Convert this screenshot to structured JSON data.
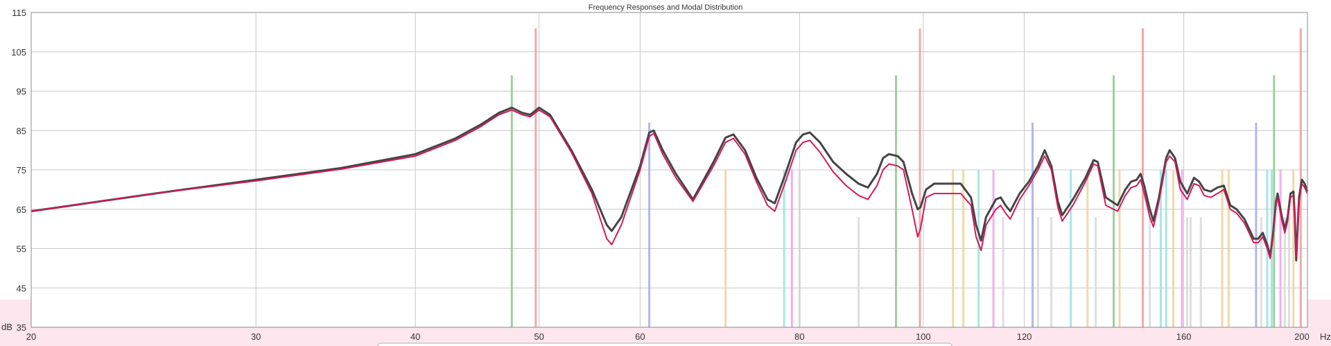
{
  "chart_data": {
    "type": "line",
    "title": "Frequency Responses and Modal Distribution",
    "x_scale": "log",
    "xlim": [
      20,
      200
    ],
    "ylim": [
      35,
      115
    ],
    "x_unit": "Hz",
    "y_unit": "dB",
    "x_ticks": [
      20,
      30,
      40,
      50,
      60,
      80,
      100,
      120,
      160,
      200
    ],
    "x_tick_labels": [
      "20",
      "30",
      "40",
      "50",
      "60",
      "80",
      "100",
      "120",
      "160",
      "200"
    ],
    "y_ticks": [
      35,
      45,
      55,
      65,
      75,
      85,
      95,
      105,
      115
    ],
    "y_tick_labels": [
      "35",
      "45",
      "55",
      "65",
      "75",
      "85",
      "95",
      "105",
      "115"
    ],
    "grid": true,
    "series": [
      {
        "color": "#444444",
        "points": [
          [
            20,
            64.5
          ],
          [
            25,
            69
          ],
          [
            30,
            72.5
          ],
          [
            35,
            75.5
          ],
          [
            40,
            79
          ],
          [
            43,
            83
          ],
          [
            45,
            86.5
          ],
          [
            46.5,
            89.5
          ],
          [
            47.6,
            90.8
          ],
          [
            48.5,
            89.5
          ],
          [
            49.2,
            89
          ],
          [
            50,
            90.8
          ],
          [
            51,
            89
          ],
          [
            53,
            80
          ],
          [
            55,
            70
          ],
          [
            56.5,
            61
          ],
          [
            57,
            59.5
          ],
          [
            58,
            63
          ],
          [
            60,
            76
          ],
          [
            61,
            84.5
          ],
          [
            61.5,
            85
          ],
          [
            62.5,
            80
          ],
          [
            64,
            74
          ],
          [
            66,
            67.5
          ],
          [
            68.5,
            77
          ],
          [
            70,
            83.2
          ],
          [
            71,
            84
          ],
          [
            72.5,
            80
          ],
          [
            74,
            73
          ],
          [
            75.5,
            67.5
          ],
          [
            76.5,
            66.5
          ],
          [
            78,
            74
          ],
          [
            79.5,
            82
          ],
          [
            80.5,
            84
          ],
          [
            81.5,
            84.5
          ],
          [
            83,
            82
          ],
          [
            85,
            77
          ],
          [
            87,
            74
          ],
          [
            89,
            71.5
          ],
          [
            90.5,
            70.5
          ],
          [
            92,
            74
          ],
          [
            93,
            78
          ],
          [
            94,
            79
          ],
          [
            95.5,
            78.5
          ],
          [
            96.5,
            77
          ],
          [
            98,
            69
          ],
          [
            99,
            65
          ],
          [
            99.5,
            65.5
          ],
          [
            100.5,
            70
          ],
          [
            102,
            71.5
          ],
          [
            104,
            71.5
          ],
          [
            107,
            71.5
          ],
          [
            109,
            68
          ],
          [
            110,
            61
          ],
          [
            111,
            57
          ],
          [
            112,
            63
          ],
          [
            114,
            67.5
          ],
          [
            115,
            68
          ],
          [
            116,
            66
          ],
          [
            117,
            64.5
          ],
          [
            119,
            69
          ],
          [
            121,
            72
          ],
          [
            123,
            76
          ],
          [
            124.5,
            80
          ],
          [
            126,
            76
          ],
          [
            127.5,
            67
          ],
          [
            128.5,
            63.5
          ],
          [
            131,
            67.5
          ],
          [
            134,
            73
          ],
          [
            136,
            77.5
          ],
          [
            137,
            77
          ],
          [
            139,
            68
          ],
          [
            142,
            66
          ],
          [
            144,
            70
          ],
          [
            145.5,
            72
          ],
          [
            147,
            72.5
          ],
          [
            148,
            74
          ],
          [
            149,
            71
          ],
          [
            150.5,
            65
          ],
          [
            151.5,
            62
          ],
          [
            153,
            68
          ],
          [
            155,
            78
          ],
          [
            156,
            80
          ],
          [
            157.5,
            78
          ],
          [
            159,
            72
          ],
          [
            161,
            69
          ],
          [
            163,
            73
          ],
          [
            164.5,
            72
          ],
          [
            166,
            70
          ],
          [
            168,
            69.5
          ],
          [
            170,
            70.5
          ],
          [
            172,
            71
          ],
          [
            174,
            66
          ],
          [
            176,
            65
          ],
          [
            177,
            64
          ],
          [
            178.5,
            62.5
          ],
          [
            180,
            60
          ],
          [
            181.5,
            57.5
          ],
          [
            183,
            57.5
          ],
          [
            184.5,
            59
          ],
          [
            186,
            56
          ],
          [
            187,
            53
          ],
          [
            188,
            59
          ],
          [
            189,
            67
          ],
          [
            189.5,
            69
          ],
          [
            191,
            63
          ],
          [
            192,
            60
          ],
          [
            193,
            63
          ],
          [
            194,
            69
          ],
          [
            195,
            69.5
          ],
          [
            195.5,
            63
          ],
          [
            196,
            52
          ],
          [
            196.5,
            60
          ],
          [
            197,
            68
          ],
          [
            198,
            72.5
          ],
          [
            199,
            71.5
          ],
          [
            200,
            69.5
          ]
        ]
      },
      {
        "color": "#d1195a",
        "points": [
          [
            20,
            64.5
          ],
          [
            25,
            69
          ],
          [
            30,
            72.2
          ],
          [
            35,
            75.2
          ],
          [
            40,
            78.5
          ],
          [
            43,
            82.5
          ],
          [
            45,
            86
          ],
          [
            46.5,
            89
          ],
          [
            47.6,
            90.2
          ],
          [
            48.5,
            89
          ],
          [
            49.2,
            88.5
          ],
          [
            50,
            90.2
          ],
          [
            51,
            88.5
          ],
          [
            53,
            79.5
          ],
          [
            55,
            69
          ],
          [
            56.5,
            57.5
          ],
          [
            57,
            56
          ],
          [
            58,
            61
          ],
          [
            60,
            75
          ],
          [
            61,
            83.5
          ],
          [
            61.5,
            84.3
          ],
          [
            62.5,
            79
          ],
          [
            64,
            73
          ],
          [
            66,
            67
          ],
          [
            68.5,
            76
          ],
          [
            70,
            82
          ],
          [
            71,
            83
          ],
          [
            72.5,
            79
          ],
          [
            74,
            72
          ],
          [
            75.5,
            66
          ],
          [
            76.5,
            64.5
          ],
          [
            78,
            72
          ],
          [
            79.5,
            80
          ],
          [
            80.5,
            82
          ],
          [
            81.5,
            82.5
          ],
          [
            83,
            79.5
          ],
          [
            85,
            74.5
          ],
          [
            87,
            71
          ],
          [
            89,
            68.5
          ],
          [
            90.5,
            67.5
          ],
          [
            92,
            71
          ],
          [
            93,
            75
          ],
          [
            94,
            76.5
          ],
          [
            95.5,
            76
          ],
          [
            96.5,
            75
          ],
          [
            98,
            65
          ],
          [
            99,
            58
          ],
          [
            99.5,
            60
          ],
          [
            100.5,
            68
          ],
          [
            102,
            69
          ],
          [
            104,
            69
          ],
          [
            107,
            69
          ],
          [
            109,
            66
          ],
          [
            110,
            58
          ],
          [
            111,
            54.5
          ],
          [
            112,
            61
          ],
          [
            114,
            65
          ],
          [
            115,
            66
          ],
          [
            116,
            64
          ],
          [
            117,
            62.5
          ],
          [
            119,
            67.5
          ],
          [
            121,
            71
          ],
          [
            123,
            75
          ],
          [
            124.5,
            78.5
          ],
          [
            126,
            75
          ],
          [
            127.5,
            65.5
          ],
          [
            128.5,
            62
          ],
          [
            131,
            66
          ],
          [
            134,
            72
          ],
          [
            136,
            76.5
          ],
          [
            137,
            76
          ],
          [
            139,
            66
          ],
          [
            142,
            64.5
          ],
          [
            144,
            68.5
          ],
          [
            145.5,
            70.5
          ],
          [
            147,
            71
          ],
          [
            148,
            72.5
          ],
          [
            149,
            69
          ],
          [
            150.5,
            63
          ],
          [
            151.5,
            60.5
          ],
          [
            153,
            67
          ],
          [
            155,
            77
          ],
          [
            156,
            78.5
          ],
          [
            157.5,
            77
          ],
          [
            159,
            70
          ],
          [
            161,
            67.5
          ],
          [
            163,
            71.5
          ],
          [
            164.5,
            71
          ],
          [
            166,
            68.5
          ],
          [
            168,
            68
          ],
          [
            170,
            69
          ],
          [
            172,
            70
          ],
          [
            174,
            65
          ],
          [
            176,
            64
          ],
          [
            177,
            63
          ],
          [
            178.5,
            61.5
          ],
          [
            180,
            59
          ],
          [
            181.5,
            56.5
          ],
          [
            183,
            56.5
          ],
          [
            184.5,
            58
          ],
          [
            186,
            55
          ],
          [
            187,
            52.5
          ],
          [
            188,
            58
          ],
          [
            189,
            66
          ],
          [
            189.5,
            68
          ],
          [
            191,
            62
          ],
          [
            192,
            59
          ],
          [
            193,
            62
          ],
          [
            194,
            68
          ],
          [
            195,
            68.5
          ],
          [
            195.5,
            62
          ],
          [
            196,
            53
          ],
          [
            196.5,
            59
          ],
          [
            197,
            67
          ],
          [
            198,
            71.5
          ],
          [
            199,
            70.5
          ],
          [
            200,
            69
          ]
        ]
      }
    ],
    "modes": [
      {
        "f": 47.6,
        "top": 99,
        "color": "#8cc88c"
      },
      {
        "f": 49.7,
        "top": 111,
        "color": "#ee9a9a"
      },
      {
        "f": 61.0,
        "top": 87,
        "color": "#a8a8e8"
      },
      {
        "f": 70.0,
        "top": 75,
        "color": "#ecd29a"
      },
      {
        "f": 77.8,
        "top": 75,
        "color": "#9ae0e0"
      },
      {
        "f": 78.9,
        "top": 75,
        "color": "#f0a0e8"
      },
      {
        "f": 80.0,
        "top": 75,
        "color": "#d4d4d4"
      },
      {
        "f": 89.0,
        "top": 63,
        "color": "#d8d8d8"
      },
      {
        "f": 95.2,
        "top": 99,
        "color": "#8cc88c"
      },
      {
        "f": 99.4,
        "top": 111,
        "color": "#ee9a9a"
      },
      {
        "f": 105.5,
        "top": 75,
        "color": "#ecd29a"
      },
      {
        "f": 107.5,
        "top": 75,
        "color": "#ecd29a"
      },
      {
        "f": 110.5,
        "top": 75,
        "color": "#9ae0e0"
      },
      {
        "f": 113.5,
        "top": 75,
        "color": "#f0a0e8"
      },
      {
        "f": 115.5,
        "top": 63,
        "color": "#d8d8d8"
      },
      {
        "f": 121.8,
        "top": 87,
        "color": "#a8a8e8"
      },
      {
        "f": 123.0,
        "top": 63,
        "color": "#d8d8d8"
      },
      {
        "f": 126.0,
        "top": 63,
        "color": "#d8d8d8"
      },
      {
        "f": 130.5,
        "top": 75,
        "color": "#9ae0e0"
      },
      {
        "f": 134.5,
        "top": 75,
        "color": "#ecd29a"
      },
      {
        "f": 136.5,
        "top": 63,
        "color": "#d8d8d8"
      },
      {
        "f": 141.0,
        "top": 99,
        "color": "#8cc88c"
      },
      {
        "f": 142.5,
        "top": 75,
        "color": "#ecd29a"
      },
      {
        "f": 148.6,
        "top": 111,
        "color": "#ee9a9a"
      },
      {
        "f": 150.5,
        "top": 63,
        "color": "#d8d8d8"
      },
      {
        "f": 153.5,
        "top": 75,
        "color": "#9ae0e0"
      },
      {
        "f": 155.0,
        "top": 75,
        "color": "#9ae0e0"
      },
      {
        "f": 157.0,
        "top": 75,
        "color": "#ecd29a"
      },
      {
        "f": 159.5,
        "top": 75,
        "color": "#f0a0e8"
      },
      {
        "f": 161.0,
        "top": 63,
        "color": "#d8d8d8"
      },
      {
        "f": 162.0,
        "top": 63,
        "color": "#d8d8d8"
      },
      {
        "f": 165.0,
        "top": 63,
        "color": "#d8d8d8"
      },
      {
        "f": 171.5,
        "top": 75,
        "color": "#ecd29a"
      },
      {
        "f": 173.5,
        "top": 75,
        "color": "#ecd29a"
      },
      {
        "f": 182.3,
        "top": 87,
        "color": "#a8a8e8"
      },
      {
        "f": 184.0,
        "top": 63,
        "color": "#d8d8d8"
      },
      {
        "f": 186.0,
        "top": 75,
        "color": "#9ae0e0"
      },
      {
        "f": 187.5,
        "top": 75,
        "color": "#9ae0e0"
      },
      {
        "f": 188.3,
        "top": 99,
        "color": "#8cc88c"
      },
      {
        "f": 190.5,
        "top": 75,
        "color": "#f0a0e8"
      },
      {
        "f": 192.0,
        "top": 63,
        "color": "#d8d8d8"
      },
      {
        "f": 193.5,
        "top": 63,
        "color": "#d8d8d8"
      },
      {
        "f": 195.0,
        "top": 75,
        "color": "#ecd29a"
      },
      {
        "f": 197.6,
        "top": 111,
        "color": "#ee9a9a"
      }
    ]
  }
}
